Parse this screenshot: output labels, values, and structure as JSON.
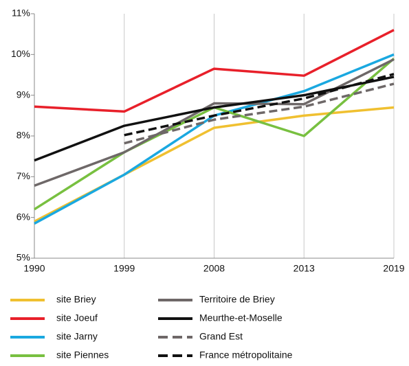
{
  "chart_data": {
    "type": "line",
    "categories": [
      "1990",
      "1999",
      "2008",
      "2013",
      "2019"
    ],
    "ylim": [
      5,
      11
    ],
    "yticks": [
      {
        "value": 5,
        "label": "5%"
      },
      {
        "value": 6,
        "label": "6%"
      },
      {
        "value": 7,
        "label": "7%"
      },
      {
        "value": 8,
        "label": "8%"
      },
      {
        "value": 9,
        "label": "9%"
      },
      {
        "value": 10,
        "label": "10%"
      },
      {
        "value": 11,
        "label": "11%"
      }
    ],
    "grid": true,
    "series": [
      {
        "name": "site Briey",
        "color": "#f0c030",
        "dashed": false,
        "values": [
          5.9,
          7.05,
          8.2,
          8.5,
          8.7
        ]
      },
      {
        "name": "site Joeuf",
        "color": "#e8202a",
        "dashed": false,
        "values": [
          8.72,
          8.6,
          9.65,
          9.48,
          10.6
        ]
      },
      {
        "name": "site Jarny",
        "color": "#1aa8e0",
        "dashed": false,
        "values": [
          5.85,
          7.05,
          8.5,
          9.1,
          10.0
        ]
      },
      {
        "name": "site Piennes",
        "color": "#78c040",
        "dashed": false,
        "values": [
          6.2,
          7.6,
          8.7,
          8.0,
          9.9
        ]
      },
      {
        "name": "Territoire de Briey",
        "color": "#6e6868",
        "dashed": false,
        "values": [
          6.78,
          7.6,
          8.8,
          8.78,
          9.88
        ]
      },
      {
        "name": "Meurthe-et-Moselle",
        "color": "#111111",
        "dashed": false,
        "values": [
          7.4,
          8.25,
          8.7,
          9.0,
          9.45
        ]
      },
      {
        "name": "Grand Est",
        "color": "#6e6868",
        "dashed": true,
        "values": [
          null,
          7.82,
          8.4,
          8.72,
          9.28
        ]
      },
      {
        "name": "France métropolitaine",
        "color": "#111111",
        "dashed": true,
        "values": [
          null,
          8.02,
          8.5,
          8.92,
          9.52
        ]
      }
    ]
  }
}
